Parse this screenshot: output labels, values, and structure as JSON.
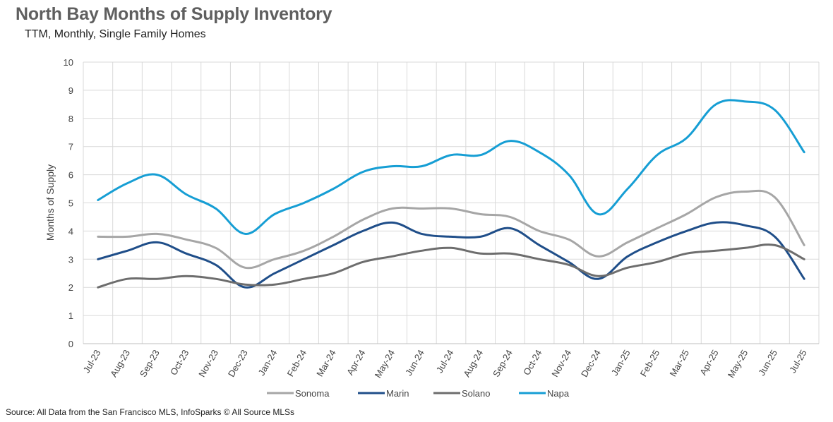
{
  "header": {
    "title": "North Bay Months of Supply Inventory",
    "subtitle": "TTM, Monthly, Single Family Homes"
  },
  "footer": {
    "source": "Source: All Data from the San Francisco MLS, InfoSparks © All Source MLSs"
  },
  "chart_data": {
    "type": "line",
    "title": "North Bay Months of Supply Inventory",
    "subtitle": "TTM, Monthly, Single Family Homes",
    "xlabel": "",
    "ylabel": "Months of Supply",
    "ylim": [
      0,
      10
    ],
    "yticks": [
      0,
      1,
      2,
      3,
      4,
      5,
      6,
      7,
      8,
      9,
      10
    ],
    "grid": true,
    "legend_position": "bottom",
    "smooth": true,
    "categories": [
      "Jul-23",
      "Aug-23",
      "Sep-23",
      "Oct-23",
      "Nov-23",
      "Dec-23",
      "Jan-24",
      "Feb-24",
      "Mar-24",
      "Apr-24",
      "May-24",
      "Jun-24",
      "Jul-24",
      "Aug-24",
      "Sep-24",
      "Oct-24",
      "Nov-24",
      "Dec-24",
      "Jan-25",
      "Feb-25",
      "Mar-25",
      "Apr-25",
      "May-25",
      "Jun-25",
      "Jul-25"
    ],
    "series": [
      {
        "name": "Sonoma",
        "color": "#a6a6a6",
        "values": [
          3.8,
          3.8,
          3.9,
          3.7,
          3.4,
          2.7,
          3.0,
          3.3,
          3.8,
          4.4,
          4.8,
          4.8,
          4.8,
          4.6,
          4.5,
          4.0,
          3.7,
          3.1,
          3.6,
          4.1,
          4.6,
          5.2,
          5.4,
          5.2,
          3.5
        ]
      },
      {
        "name": "Marin",
        "color": "#1f4e89",
        "values": [
          3.0,
          3.3,
          3.6,
          3.2,
          2.8,
          2.0,
          2.5,
          3.0,
          3.5,
          4.0,
          4.3,
          3.9,
          3.8,
          3.8,
          4.1,
          3.5,
          2.9,
          2.3,
          3.1,
          3.6,
          4.0,
          4.3,
          4.2,
          3.8,
          2.3
        ]
      },
      {
        "name": "Solano",
        "color": "#6d6d6d",
        "values": [
          2.0,
          2.3,
          2.3,
          2.4,
          2.3,
          2.1,
          2.1,
          2.3,
          2.5,
          2.9,
          3.1,
          3.3,
          3.4,
          3.2,
          3.2,
          3.0,
          2.8,
          2.4,
          2.7,
          2.9,
          3.2,
          3.3,
          3.4,
          3.5,
          3.0
        ]
      },
      {
        "name": "Napa",
        "color": "#169ed4",
        "values": [
          5.1,
          5.7,
          6.0,
          5.3,
          4.8,
          3.9,
          4.6,
          5.0,
          5.5,
          6.1,
          6.3,
          6.3,
          6.7,
          6.7,
          7.2,
          6.8,
          6.0,
          4.6,
          5.5,
          6.7,
          7.3,
          8.5,
          8.6,
          8.3,
          6.8
        ]
      }
    ]
  }
}
